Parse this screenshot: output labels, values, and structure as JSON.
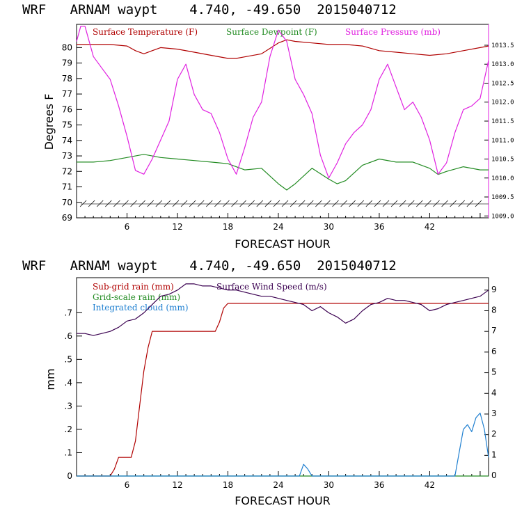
{
  "colors": {
    "temperature": "#b00000",
    "dewpoint": "#228b22",
    "pressure": "#e020e0",
    "subgrid_rain": "#b00000",
    "gridscale_rain": "#228b22",
    "cloud": "#1e7fd0",
    "wind": "#3a0050",
    "axis": "#000000"
  },
  "panels": {
    "top": {
      "title": "WRF   ARNAM waypt    4.740, -49.650  2015040712"
    },
    "bottom": {
      "title": "WRF   ARNAM waypt    4.740, -49.650  2015040712"
    }
  },
  "chart_data": [
    {
      "type": "line",
      "title": "WRF   ARNAM waypt    4.740, -49.650  2015040712",
      "xlabel": "FORECAST HOUR",
      "ylabel": "Degrees F",
      "y2label": "",
      "xlim": [
        0,
        49
      ],
      "ylim": [
        69,
        81.5
      ],
      "y2lim": [
        1008.95,
        1014.05
      ],
      "x_ticks": [
        6,
        12,
        18,
        24,
        30,
        36,
        42
      ],
      "y_ticks": [
        69,
        70,
        71,
        72,
        73,
        74,
        75,
        76,
        77,
        78,
        79,
        80
      ],
      "y2_ticks": [
        "1009.0",
        "1009.5",
        "1010.0",
        "1010.5",
        "1011.0",
        "1011.5",
        "1012.0",
        "1012.5",
        "1013.0",
        "1013.5"
      ],
      "legend_position": "top",
      "series": [
        {
          "name": "Surface Temperature (F)",
          "axis": "left",
          "x": [
            0,
            2,
            4,
            6,
            7,
            8,
            9,
            10,
            12,
            14,
            16,
            18,
            19,
            20,
            22,
            24,
            25,
            26,
            28,
            30,
            32,
            34,
            36,
            38,
            40,
            42,
            44,
            46,
            48,
            49
          ],
          "y": [
            80.2,
            80.2,
            80.2,
            80.1,
            79.8,
            79.6,
            79.8,
            80.0,
            79.9,
            79.7,
            79.5,
            79.3,
            79.3,
            79.4,
            79.6,
            80.3,
            80.5,
            80.4,
            80.3,
            80.2,
            80.2,
            80.1,
            79.8,
            79.7,
            79.6,
            79.5,
            79.6,
            79.8,
            80.0,
            80.1
          ]
        },
        {
          "name": "Surface Dewpoint (F)",
          "axis": "left",
          "x": [
            0,
            2,
            4,
            6,
            8,
            10,
            12,
            14,
            16,
            18,
            20,
            22,
            24,
            25,
            26,
            28,
            30,
            31,
            32,
            34,
            36,
            38,
            40,
            42,
            43,
            44,
            46,
            48,
            49
          ],
          "y": [
            72.6,
            72.6,
            72.7,
            72.9,
            73.1,
            72.9,
            72.8,
            72.7,
            72.6,
            72.5,
            72.1,
            72.2,
            71.2,
            70.8,
            71.2,
            72.2,
            71.5,
            71.2,
            71.4,
            72.4,
            72.8,
            72.6,
            72.6,
            72.2,
            71.8,
            72.0,
            72.3,
            72.1,
            72.1
          ]
        },
        {
          "name": "Surface Pressure (mb)",
          "axis": "right",
          "x": [
            0,
            0.5,
            1,
            2,
            3,
            4,
            5,
            6,
            7,
            8,
            9,
            10,
            11,
            12,
            13,
            14,
            15,
            16,
            17,
            18,
            19,
            20,
            21,
            22,
            23,
            24,
            25,
            26,
            27,
            28,
            29,
            30,
            31,
            32,
            33,
            34,
            35,
            36,
            37,
            38,
            39,
            40,
            41,
            42,
            43,
            44,
            45,
            46,
            47,
            48,
            49
          ],
          "y": [
            1013.6,
            1014.0,
            1014.0,
            1013.2,
            1012.9,
            1012.6,
            1011.9,
            1011.1,
            1010.2,
            1010.1,
            1010.5,
            1011.0,
            1011.5,
            1012.6,
            1013.0,
            1012.2,
            1011.8,
            1011.7,
            1011.2,
            1010.5,
            1010.1,
            1010.8,
            1011.6,
            1012.0,
            1013.2,
            1013.9,
            1013.6,
            1012.6,
            1012.2,
            1011.7,
            1010.6,
            1010.0,
            1010.4,
            1010.9,
            1011.2,
            1011.4,
            1011.8,
            1012.6,
            1013.0,
            1012.4,
            1011.8,
            1012.0,
            1011.6,
            1011.0,
            1010.1,
            1010.4,
            1011.2,
            1011.8,
            1011.9,
            1012.1,
            1013.1
          ]
        }
      ],
      "bottom_band": "wind barbs near 70 F"
    },
    {
      "type": "line",
      "title": "WRF   ARNAM waypt    4.740, -49.650  2015040712",
      "xlabel": "FORECAST HOUR",
      "ylabel": "mm",
      "y2label": "",
      "xlim": [
        0,
        49
      ],
      "ylim": [
        0,
        0.85
      ],
      "y2lim": [
        0,
        9.6
      ],
      "x_ticks": [
        6,
        12,
        18,
        24,
        30,
        36,
        42
      ],
      "y_ticks": [
        0,
        0.1,
        0.2,
        0.3,
        0.4,
        0.5,
        0.6,
        0.7
      ],
      "y_tick_labels": [
        "0",
        ".1",
        ".2",
        ".3",
        ".4",
        ".5",
        ".6",
        ".7"
      ],
      "y2_ticks": [
        "0",
        "1",
        "2",
        "3",
        "4",
        "5",
        "6",
        "7",
        "8",
        "9"
      ],
      "legend_position": "top-left",
      "series": [
        {
          "name": "Sub-grid rain (mm)",
          "axis": "left",
          "x": [
            0,
            4,
            4.5,
            5,
            6,
            6.5,
            7,
            7.5,
            8,
            8.5,
            9,
            12,
            16,
            16.5,
            17,
            17.5,
            18,
            49
          ],
          "y": [
            0,
            0,
            0.03,
            0.08,
            0.08,
            0.08,
            0.15,
            0.3,
            0.45,
            0.55,
            0.62,
            0.62,
            0.62,
            0.62,
            0.66,
            0.72,
            0.74,
            0.74
          ]
        },
        {
          "name": "Grid-scale rain (mm)",
          "axis": "left",
          "x": [
            0,
            49
          ],
          "y": [
            0,
            0
          ]
        },
        {
          "name": "Integrated cloud (mm)",
          "axis": "left",
          "x": [
            0,
            26.5,
            27,
            27.5,
            28,
            45,
            45.5,
            46,
            46.5,
            47,
            47.5,
            48,
            48.5,
            49
          ],
          "y": [
            0,
            0,
            0.05,
            0.03,
            0,
            0,
            0.1,
            0.2,
            0.22,
            0.19,
            0.25,
            0.27,
            0.2,
            0.08
          ]
        },
        {
          "name": "Surface Wind Speed (m/s)",
          "axis": "right",
          "x": [
            0,
            1,
            2,
            3,
            4,
            5,
            6,
            7,
            8,
            9,
            10,
            11,
            12,
            13,
            14,
            15,
            16,
            17,
            18,
            19,
            20,
            21,
            22,
            23,
            24,
            25,
            26,
            27,
            28,
            29,
            30,
            31,
            32,
            33,
            34,
            35,
            36,
            37,
            38,
            39,
            40,
            41,
            42,
            43,
            44,
            45,
            46,
            47,
            48,
            49
          ],
          "y": [
            6.9,
            6.9,
            6.8,
            6.9,
            7.0,
            7.2,
            7.5,
            7.6,
            7.9,
            8.3,
            8.7,
            8.8,
            9.0,
            9.3,
            9.3,
            9.2,
            9.2,
            9.1,
            9.0,
            9.0,
            8.9,
            8.8,
            8.7,
            8.7,
            8.6,
            8.5,
            8.4,
            8.3,
            8.0,
            8.2,
            7.9,
            7.7,
            7.4,
            7.6,
            8.0,
            8.3,
            8.4,
            8.6,
            8.5,
            8.5,
            8.4,
            8.3,
            8.0,
            8.1,
            8.3,
            8.4,
            8.5,
            8.6,
            8.7,
            9.0
          ]
        }
      ]
    }
  ]
}
